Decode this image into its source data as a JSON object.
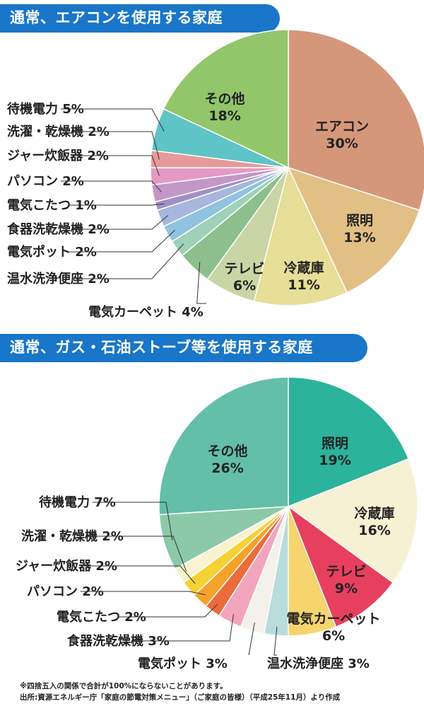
{
  "chart1_title": "通常、エアコンを使用する家庭",
  "chart2_title": "通常、ガス・石油ストーブ等を使用する家庭",
  "footnote": "※四捨五入の関係で合計が100%にならないことがあります。",
  "source": "出所:資源エネルギー庁「家庭の節電対策メニュー」（ご家庭の皆様）（平成25年11月）より作成",
  "chart_data": [
    {
      "type": "pie",
      "title": "通常、エアコンを使用する家庭",
      "slices": [
        {
          "label": "エアコン",
          "value": 30,
          "color": "#d4977a"
        },
        {
          "label": "照明",
          "value": 13,
          "color": "#e2bf84"
        },
        {
          "label": "冷蔵庫",
          "value": 11,
          "color": "#e7de97"
        },
        {
          "label": "テレビ",
          "value": 6,
          "color": "#c9d5a5"
        },
        {
          "label": "電気カーペット",
          "value": 4,
          "color": "#8cbf8c"
        },
        {
          "label": "温水洗浄便座",
          "value": 2,
          "color": "#9fd1b8"
        },
        {
          "label": "電気ポット",
          "value": 2,
          "color": "#8fc3df"
        },
        {
          "label": "食器洗乾燥機",
          "value": 2,
          "color": "#a7b6dc"
        },
        {
          "label": "電気こたつ",
          "value": 1,
          "color": "#a090c6"
        },
        {
          "label": "パソコン",
          "value": 2,
          "color": "#c397c6"
        },
        {
          "label": "ジャー炊飯器",
          "value": 2,
          "color": "#e39ac3"
        },
        {
          "label": "洗濯・乾燥機",
          "value": 2,
          "color": "#e79a9a"
        },
        {
          "label": "待機電力",
          "value": 5,
          "color": "#5ec4c6"
        },
        {
          "label": "その他",
          "value": 18,
          "color": "#92c66a"
        }
      ]
    },
    {
      "type": "pie",
      "title": "通常、ガス・石油ストーブ等を使用する家庭",
      "slices": [
        {
          "label": "照明",
          "value": 19,
          "color": "#2cb39c"
        },
        {
          "label": "冷蔵庫",
          "value": 16,
          "color": "#f7f1d4"
        },
        {
          "label": "テレビ",
          "value": 9,
          "color": "#e6405e"
        },
        {
          "label": "電気カーペット",
          "value": 6,
          "color": "#f6d46e"
        },
        {
          "label": "温水洗浄便座",
          "value": 3,
          "color": "#b9dcdc"
        },
        {
          "label": "電気ポット",
          "value": 3,
          "color": "#f3f1ea"
        },
        {
          "label": "食器洗乾燥機",
          "value": 3,
          "color": "#f2a6bd"
        },
        {
          "label": "電気こたつ",
          "value": 2,
          "color": "#ec6b3a"
        },
        {
          "label": "パソコン",
          "value": 2,
          "color": "#f4a229"
        },
        {
          "label": "ジャー炊飯器",
          "value": 2,
          "color": "#f6d136"
        },
        {
          "label": "洗濯・乾燥機",
          "value": 2,
          "color": "#f8f4cf"
        },
        {
          "label": "待機電力",
          "value": 7,
          "color": "#8cc9a8"
        },
        {
          "label": "その他",
          "value": 26,
          "color": "#63bfa7"
        }
      ]
    }
  ]
}
